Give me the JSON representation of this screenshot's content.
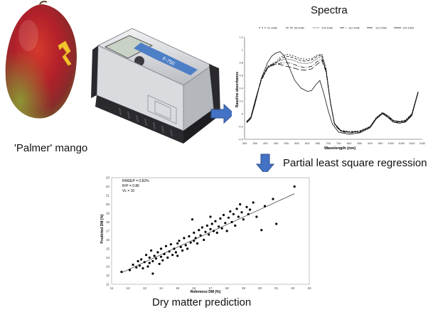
{
  "labels": {
    "mango": "'Palmer' mango",
    "spectra": "Spectra",
    "regression": "Partial least square regression",
    "prediction": "Dry matter prediction"
  },
  "device_name": "F-750",
  "colors": {
    "mango_red": "#b2202a",
    "mango_green": "#7f8d2e",
    "mango_yellow": "#e2b82c",
    "arrow_blue": "#4472c4",
    "device_body": "#d9dbdf",
    "device_dark": "#2a2a2e",
    "device_screen_band": "#4d7fc6"
  },
  "chart_data": [
    {
      "type": "line",
      "title": "",
      "xlabel": "Wavelength (nm)",
      "ylabel": "Baseline absorbance",
      "xlim": [
        300,
        1150
      ],
      "ylim": [
        -0.4,
        1.2
      ],
      "xticks": [
        300,
        350,
        400,
        450,
        500,
        550,
        600,
        650,
        700,
        750,
        800,
        850,
        900,
        950,
        1000,
        1050,
        1100,
        1150
      ],
      "yticks": [
        -0.4,
        -0.2,
        0,
        0.2,
        0.4,
        0.6,
        0.8,
        1,
        1.2
      ],
      "legend_position": "top",
      "series": [
        {
          "name": "91 DAB",
          "dash": "2,2",
          "x": [
            310,
            330,
            350,
            380,
            410,
            430,
            450,
            470,
            500,
            530,
            560,
            590,
            620,
            650,
            670,
            690,
            710,
            730,
            760,
            800,
            850,
            900,
            930,
            960,
            990,
            1010,
            1040,
            1070,
            1100,
            1130
          ],
          "y": [
            -0.12,
            -0.05,
            0.2,
            0.55,
            0.74,
            0.78,
            0.81,
            0.88,
            0.93,
            0.91,
            0.87,
            0.85,
            0.86,
            0.92,
            0.93,
            0.7,
            0.2,
            -0.15,
            -0.26,
            -0.28,
            -0.27,
            -0.2,
            -0.06,
            0.02,
            -0.04,
            -0.1,
            -0.12,
            -0.1,
            0.0,
            0.35
          ]
        },
        {
          "name": "98 DAB",
          "dash": "4,2",
          "x": [
            310,
            330,
            350,
            380,
            410,
            430,
            450,
            470,
            500,
            530,
            560,
            590,
            620,
            650,
            670,
            690,
            710,
            730,
            760,
            800,
            850,
            900,
            930,
            960,
            990,
            1010,
            1040,
            1070,
            1100,
            1130
          ],
          "y": [
            -0.13,
            -0.06,
            0.19,
            0.53,
            0.72,
            0.76,
            0.79,
            0.85,
            0.9,
            0.88,
            0.84,
            0.82,
            0.84,
            0.9,
            0.92,
            0.69,
            0.19,
            -0.16,
            -0.27,
            -0.29,
            -0.28,
            -0.21,
            -0.07,
            0.01,
            -0.05,
            -0.11,
            -0.13,
            -0.11,
            -0.01,
            0.34
          ]
        },
        {
          "name": "105 DAB",
          "dash": "1,1",
          "x": [
            310,
            330,
            350,
            380,
            410,
            430,
            450,
            470,
            500,
            530,
            560,
            590,
            620,
            650,
            670,
            690,
            710,
            730,
            760,
            800,
            850,
            900,
            930,
            960,
            990,
            1010,
            1040,
            1070,
            1100,
            1130
          ],
          "y": [
            -0.12,
            -0.05,
            0.2,
            0.54,
            0.73,
            0.77,
            0.8,
            0.83,
            0.86,
            0.84,
            0.8,
            0.78,
            0.8,
            0.87,
            0.9,
            0.68,
            0.19,
            -0.15,
            -0.26,
            -0.28,
            -0.27,
            -0.2,
            -0.06,
            0.02,
            -0.04,
            -0.1,
            -0.12,
            -0.1,
            0.0,
            0.35
          ]
        },
        {
          "name": "112 DAB",
          "dash": "6,2,1,2",
          "x": [
            310,
            330,
            350,
            380,
            410,
            430,
            450,
            470,
            500,
            530,
            560,
            590,
            620,
            650,
            670,
            690,
            710,
            730,
            760,
            800,
            850,
            900,
            930,
            960,
            990,
            1010,
            1040,
            1070,
            1100,
            1130
          ],
          "y": [
            -0.14,
            -0.07,
            0.18,
            0.52,
            0.71,
            0.75,
            0.77,
            0.79,
            0.8,
            0.78,
            0.74,
            0.72,
            0.74,
            0.82,
            0.86,
            0.66,
            0.18,
            -0.17,
            -0.28,
            -0.3,
            -0.29,
            -0.22,
            -0.08,
            0.0,
            -0.06,
            -0.12,
            -0.14,
            -0.12,
            -0.02,
            0.33
          ]
        },
        {
          "name": "119 DAB",
          "dash": "8,3",
          "x": [
            310,
            330,
            350,
            380,
            410,
            430,
            450,
            470,
            500,
            530,
            560,
            590,
            620,
            650,
            670,
            690,
            710,
            730,
            760,
            800,
            850,
            900,
            930,
            960,
            990,
            1010,
            1040,
            1070,
            1100,
            1130
          ],
          "y": [
            -0.13,
            -0.06,
            0.19,
            0.53,
            0.72,
            0.76,
            0.78,
            0.77,
            0.74,
            0.72,
            0.69,
            0.68,
            0.7,
            0.78,
            0.83,
            0.65,
            0.18,
            -0.16,
            -0.27,
            -0.29,
            -0.28,
            -0.21,
            -0.07,
            0.01,
            -0.05,
            -0.11,
            -0.13,
            -0.11,
            -0.01,
            0.34
          ]
        },
        {
          "name": "126 DAB",
          "dash": "",
          "x": [
            310,
            330,
            350,
            380,
            410,
            430,
            450,
            470,
            490,
            510,
            540,
            570,
            600,
            620,
            640,
            660,
            680,
            700,
            720,
            750,
            800,
            850,
            900,
            930,
            960,
            990,
            1010,
            1040,
            1070,
            1100,
            1130
          ],
          "y": [
            -0.14,
            -0.08,
            0.15,
            0.55,
            0.8,
            0.9,
            0.95,
            0.97,
            0.9,
            0.75,
            0.52,
            0.4,
            0.35,
            0.36,
            0.45,
            0.52,
            0.3,
            0.05,
            -0.16,
            -0.29,
            -0.32,
            -0.3,
            -0.22,
            -0.08,
            0.0,
            -0.07,
            -0.13,
            -0.15,
            -0.13,
            -0.03,
            0.33
          ]
        }
      ]
    },
    {
      "type": "scatter",
      "title": "",
      "xlabel": "Reference DM (%)",
      "ylabel": "Predicted DM (%)",
      "xlim": [
        11,
        23
      ],
      "ylim": [
        11,
        23
      ],
      "xticks": [
        11,
        12,
        13,
        14,
        15,
        16,
        17,
        18,
        19,
        20,
        21,
        22,
        23
      ],
      "yticks": [
        11,
        12,
        13,
        14,
        15,
        16,
        17,
        18,
        19,
        20,
        21,
        22,
        23
      ],
      "annotations": [
        "RMSEP = 0.82%",
        "R²P = 0.86",
        "VL = 10"
      ],
      "fit_line": {
        "x": [
          11.6,
          22.1
        ],
        "y": [
          12.3,
          21.2
        ]
      },
      "points": [
        [
          11.6,
          12.4
        ],
        [
          12.1,
          12.6
        ],
        [
          12.3,
          13.2
        ],
        [
          12.5,
          12.9
        ],
        [
          12.6,
          13.6
        ],
        [
          12.7,
          13.1
        ],
        [
          12.8,
          13.8
        ],
        [
          12.9,
          12.8
        ],
        [
          13.0,
          13.5
        ],
        [
          13.1,
          14.3
        ],
        [
          13.2,
          13.0
        ],
        [
          13.3,
          14.0
        ],
        [
          13.3,
          13.4
        ],
        [
          13.4,
          14.8
        ],
        [
          13.5,
          13.6
        ],
        [
          13.5,
          12.2
        ],
        [
          13.6,
          14.2
        ],
        [
          13.7,
          13.9
        ],
        [
          13.8,
          14.6
        ],
        [
          13.9,
          13.3
        ],
        [
          14.0,
          14.1
        ],
        [
          14.0,
          15.0
        ],
        [
          14.1,
          13.7
        ],
        [
          14.2,
          14.4
        ],
        [
          14.3,
          15.3
        ],
        [
          14.4,
          14.0
        ],
        [
          14.5,
          14.7
        ],
        [
          14.6,
          15.5
        ],
        [
          14.7,
          14.3
        ],
        [
          14.8,
          15.0
        ],
        [
          14.9,
          14.6
        ],
        [
          15.0,
          15.6
        ],
        [
          15.0,
          14.2
        ],
        [
          15.1,
          15.9
        ],
        [
          15.2,
          15.2
        ],
        [
          15.3,
          14.8
        ],
        [
          15.4,
          16.2
        ],
        [
          15.5,
          15.4
        ],
        [
          15.6,
          15.0
        ],
        [
          15.7,
          16.4
        ],
        [
          15.8,
          15.7
        ],
        [
          15.9,
          18.3
        ],
        [
          16.0,
          15.9
        ],
        [
          16.0,
          16.8
        ],
        [
          16.1,
          16.2
        ],
        [
          16.2,
          15.6
        ],
        [
          16.3,
          17.1
        ],
        [
          16.4,
          16.5
        ],
        [
          16.5,
          17.4
        ],
        [
          16.6,
          16.0
        ],
        [
          16.7,
          16.9
        ],
        [
          16.8,
          17.6
        ],
        [
          16.9,
          16.6
        ],
        [
          17.0,
          17.2
        ],
        [
          17.0,
          18.6
        ],
        [
          17.1,
          17.8
        ],
        [
          17.2,
          17.0
        ],
        [
          17.3,
          18.1
        ],
        [
          17.4,
          16.8
        ],
        [
          17.5,
          17.5
        ],
        [
          17.6,
          18.4
        ],
        [
          17.7,
          17.3
        ],
        [
          17.8,
          18.8
        ],
        [
          17.9,
          17.9
        ],
        [
          18.0,
          17.0
        ],
        [
          18.1,
          18.5
        ],
        [
          18.2,
          19.2
        ],
        [
          18.3,
          18.0
        ],
        [
          18.4,
          18.9
        ],
        [
          18.5,
          17.6
        ],
        [
          18.6,
          19.5
        ],
        [
          18.7,
          18.6
        ],
        [
          18.8,
          20.0
        ],
        [
          18.9,
          19.1
        ],
        [
          19.0,
          18.3
        ],
        [
          19.2,
          19.7
        ],
        [
          19.3,
          18.9
        ],
        [
          19.4,
          19.4
        ],
        [
          19.6,
          20.2
        ],
        [
          19.8,
          18.6
        ],
        [
          20.1,
          17.1
        ],
        [
          20.3,
          19.8
        ],
        [
          20.8,
          20.6
        ],
        [
          21.0,
          17.8
        ],
        [
          22.1,
          22.0
        ]
      ]
    }
  ]
}
